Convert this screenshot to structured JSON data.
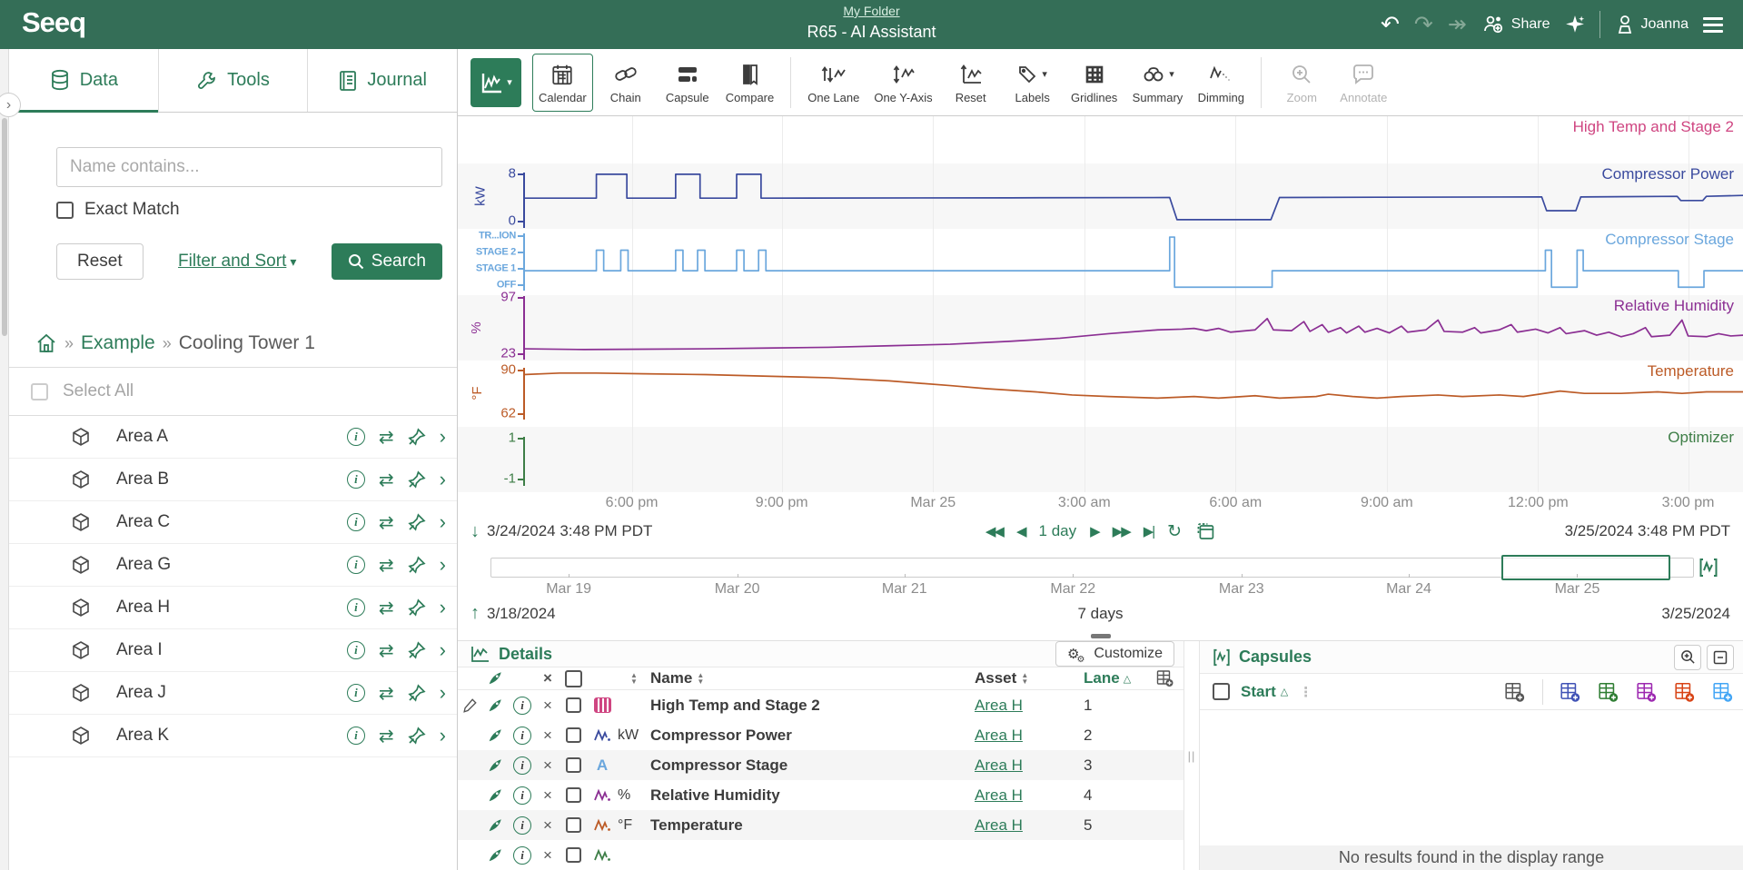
{
  "header": {
    "logo": "Seeq",
    "folder_link": "My Folder",
    "title": "R65 - AI Assistant",
    "share_label": "Share",
    "user_name": "Joanna"
  },
  "sidebar": {
    "tabs": [
      {
        "label": "Data"
      },
      {
        "label": "Tools"
      },
      {
        "label": "Journal"
      }
    ],
    "search": {
      "placeholder": "Name contains...",
      "exact_match_label": "Exact Match",
      "reset_label": "Reset",
      "filter_sort_label": "Filter and Sort",
      "search_label": "Search"
    },
    "breadcrumb": {
      "link": "Example",
      "current": "Cooling Tower 1"
    },
    "select_all_label": "Select All",
    "areas": [
      "Area A",
      "Area B",
      "Area C",
      "Area G",
      "Area H",
      "Area I",
      "Area J",
      "Area K"
    ]
  },
  "toolbar": {
    "items": [
      {
        "label": "Calendar"
      },
      {
        "label": "Chain"
      },
      {
        "label": "Capsule"
      },
      {
        "label": "Compare"
      },
      {
        "label": "One Lane"
      },
      {
        "label": "One Y-Axis"
      },
      {
        "label": "Reset"
      },
      {
        "label": "Labels"
      },
      {
        "label": "Gridlines"
      },
      {
        "label": "Summary"
      },
      {
        "label": "Dimming"
      },
      {
        "label": "Zoom"
      },
      {
        "label": "Annotate"
      }
    ]
  },
  "chart": {
    "lanes": [
      {
        "id": "high-temp-and-stage-2",
        "label": "High Temp and Stage 2",
        "color": "#cf4581",
        "bg": "#ffffff",
        "min": 0,
        "max": 1
      },
      {
        "id": "compressor-power",
        "label": "Compressor Power",
        "color": "#3a4a9e",
        "bg": "#f7f7f7",
        "unit": "kW",
        "min": -1.2,
        "max": 9.8,
        "ticks": [
          {
            "label": "8",
            "value": 8
          },
          {
            "label": "0",
            "value": 0
          }
        ],
        "points": [
          [
            0,
            4
          ],
          [
            6,
            4
          ],
          [
            6,
            8
          ],
          [
            8.5,
            8
          ],
          [
            8.5,
            4
          ],
          [
            12.5,
            4
          ],
          [
            12.5,
            8
          ],
          [
            14.5,
            8
          ],
          [
            14.5,
            4
          ],
          [
            17.5,
            4
          ],
          [
            17.5,
            8
          ],
          [
            19.5,
            8
          ],
          [
            19.5,
            4
          ],
          [
            40,
            4.05
          ],
          [
            53,
            4.1
          ],
          [
            53.6,
            0.4
          ],
          [
            61.3,
            0.4
          ],
          [
            62,
            4.1
          ],
          [
            70,
            4.15
          ],
          [
            83.5,
            4.2
          ],
          [
            83.9,
            1.9
          ],
          [
            86.3,
            1.9
          ],
          [
            86.7,
            4.2
          ],
          [
            94.6,
            4.3
          ],
          [
            94.9,
            3.6
          ],
          [
            96.7,
            3.6
          ],
          [
            97,
            4.3
          ],
          [
            100,
            4.45
          ]
        ]
      },
      {
        "id": "compressor-stage",
        "label": "Compressor Stage",
        "color": "#6ba7dd",
        "bg": "#ffffff",
        "min": -0.6,
        "max": 3.4,
        "small_ticks": true,
        "ticks": [
          {
            "label": "TR...ION",
            "value": 3
          },
          {
            "label": "STAGE 2",
            "value": 2
          },
          {
            "label": "STAGE 1",
            "value": 1
          },
          {
            "label": "OFF",
            "value": 0
          }
        ],
        "points": [
          [
            0,
            0.85
          ],
          [
            6,
            0.85
          ],
          [
            6,
            2.1
          ],
          [
            6.6,
            2.1
          ],
          [
            6.6,
            0.85
          ],
          [
            8,
            0.85
          ],
          [
            8,
            2.1
          ],
          [
            8.6,
            2.1
          ],
          [
            8.6,
            0.85
          ],
          [
            12.5,
            0.85
          ],
          [
            12.5,
            2.1
          ],
          [
            13.1,
            2.1
          ],
          [
            13.1,
            0.85
          ],
          [
            14.3,
            0.85
          ],
          [
            14.3,
            2.1
          ],
          [
            14.9,
            2.1
          ],
          [
            14.9,
            0.85
          ],
          [
            17.5,
            0.85
          ],
          [
            17.5,
            2.1
          ],
          [
            18.1,
            2.1
          ],
          [
            18.1,
            0.85
          ],
          [
            19.3,
            0.85
          ],
          [
            19.3,
            2.1
          ],
          [
            19.9,
            2.1
          ],
          [
            19.9,
            0.85
          ],
          [
            53,
            0.85
          ],
          [
            53,
            2.9
          ],
          [
            53.4,
            2.9
          ],
          [
            53.4,
            -0.15
          ],
          [
            61.4,
            -0.15
          ],
          [
            61.4,
            0.85
          ],
          [
            83.8,
            0.85
          ],
          [
            83.8,
            2.1
          ],
          [
            84.3,
            2.1
          ],
          [
            84.3,
            -0.15
          ],
          [
            86.4,
            -0.15
          ],
          [
            86.4,
            2.1
          ],
          [
            86.9,
            2.1
          ],
          [
            86.9,
            0.85
          ],
          [
            94.7,
            0.85
          ],
          [
            94.7,
            -0.15
          ],
          [
            96.8,
            -0.15
          ],
          [
            96.8,
            0.85
          ],
          [
            100,
            0.85
          ]
        ]
      },
      {
        "id": "relative-humidity",
        "label": "Relative Humidity",
        "color": "#8b2f93",
        "bg": "#f7f7f7",
        "unit": "%",
        "min": 14,
        "max": 101,
        "ticks": [
          {
            "label": "97",
            "value": 97
          },
          {
            "label": "23",
            "value": 23
          }
        ],
        "points": [
          [
            0,
            30
          ],
          [
            5,
            29
          ],
          [
            10,
            29.5
          ],
          [
            15,
            30
          ],
          [
            20,
            31
          ],
          [
            25,
            32
          ],
          [
            30,
            34
          ],
          [
            35,
            36
          ],
          [
            40,
            40
          ],
          [
            44,
            44
          ],
          [
            48,
            50
          ],
          [
            52,
            55
          ],
          [
            54,
            56
          ],
          [
            55,
            57
          ],
          [
            56,
            54
          ],
          [
            57,
            57
          ],
          [
            58,
            52
          ],
          [
            60,
            55
          ],
          [
            61,
            70
          ],
          [
            61.5,
            55
          ],
          [
            63,
            54
          ],
          [
            64,
            66
          ],
          [
            64.5,
            53
          ],
          [
            65.5,
            62
          ],
          [
            66,
            52
          ],
          [
            67,
            58
          ],
          [
            67.5,
            51
          ],
          [
            68.5,
            60
          ],
          [
            69,
            52
          ],
          [
            70,
            57
          ],
          [
            71,
            51
          ],
          [
            72,
            60
          ],
          [
            72.5,
            52
          ],
          [
            74,
            55
          ],
          [
            75,
            68
          ],
          [
            75.5,
            53
          ],
          [
            77,
            52
          ],
          [
            78,
            58
          ],
          [
            78.5,
            51
          ],
          [
            80,
            55
          ],
          [
            81,
            62
          ],
          [
            81.5,
            52
          ],
          [
            83,
            56
          ],
          [
            84,
            51
          ],
          [
            85,
            58
          ],
          [
            85.5,
            50
          ],
          [
            87,
            54
          ],
          [
            88,
            48
          ],
          [
            89,
            52
          ],
          [
            90,
            46
          ],
          [
            91,
            50
          ],
          [
            92,
            58
          ],
          [
            92.5,
            46
          ],
          [
            94,
            48
          ],
          [
            95,
            68
          ],
          [
            95.5,
            47
          ],
          [
            97,
            46
          ],
          [
            98,
            50
          ],
          [
            99,
            47
          ],
          [
            100,
            48
          ]
        ]
      },
      {
        "id": "temperature",
        "label": "Temperature",
        "color": "#bc5b27",
        "bg": "#ffffff",
        "unit": "°F",
        "min": 54,
        "max": 96,
        "ticks": [
          {
            "label": "90",
            "value": 90
          },
          {
            "label": "62",
            "value": 62
          }
        ],
        "points": [
          [
            0,
            87
          ],
          [
            3,
            88
          ],
          [
            6,
            88
          ],
          [
            10,
            87.5
          ],
          [
            15,
            87
          ],
          [
            20,
            86
          ],
          [
            25,
            85
          ],
          [
            30,
            83
          ],
          [
            35,
            80
          ],
          [
            38,
            78
          ],
          [
            42,
            76
          ],
          [
            45,
            74
          ],
          [
            48,
            73
          ],
          [
            52,
            72
          ],
          [
            55,
            73
          ],
          [
            57,
            72
          ],
          [
            60,
            73.5
          ],
          [
            62,
            72
          ],
          [
            65,
            73
          ],
          [
            66,
            74.5
          ],
          [
            68,
            73
          ],
          [
            70,
            72
          ],
          [
            72,
            73
          ],
          [
            75,
            74
          ],
          [
            77,
            73
          ],
          [
            80,
            74
          ],
          [
            82,
            73
          ],
          [
            85,
            76.5
          ],
          [
            87,
            75
          ],
          [
            90,
            75
          ],
          [
            93,
            76
          ],
          [
            95,
            75
          ],
          [
            97,
            76
          ],
          [
            100,
            76
          ]
        ]
      },
      {
        "id": "optimizer",
        "label": "Optimizer",
        "color": "#3e7e47",
        "bg": "#f7f7f7",
        "min": -1.6,
        "max": 1.6,
        "ticks": [
          {
            "label": "1",
            "value": 1
          },
          {
            "label": "-1",
            "value": -1
          }
        ]
      }
    ],
    "xticks": [
      {
        "pos": 8.9,
        "label": "6:00 pm"
      },
      {
        "pos": 21.2,
        "label": "9:00 pm"
      },
      {
        "pos": 33.6,
        "label": "Mar 25"
      },
      {
        "pos": 46.0,
        "label": "3:00 am"
      },
      {
        "pos": 58.4,
        "label": "6:00 am"
      },
      {
        "pos": 70.8,
        "label": "9:00 am"
      },
      {
        "pos": 83.2,
        "label": "12:00 pm"
      },
      {
        "pos": 95.5,
        "label": "3:00 pm"
      }
    ]
  },
  "timebar": {
    "start": "3/24/2024 3:48 PM PDT",
    "duration": "1 day",
    "end": "3/25/2024 3:48 PM PDT"
  },
  "overview": {
    "start": "3/18/2024",
    "duration": "7 days",
    "end": "3/25/2024",
    "ticks": [
      {
        "pos": 6.5,
        "label": "Mar 19"
      },
      {
        "pos": 20.5,
        "label": "Mar 20"
      },
      {
        "pos": 34.4,
        "label": "Mar 21"
      },
      {
        "pos": 48.4,
        "label": "Mar 22"
      },
      {
        "pos": 62.4,
        "label": "Mar 23"
      },
      {
        "pos": 76.3,
        "label": "Mar 24"
      },
      {
        "pos": 90.3,
        "label": "Mar 25"
      }
    ],
    "selection": {
      "left_pct": 84,
      "width_pct": 14
    }
  },
  "details": {
    "title": "Details",
    "customize_label": "Customize",
    "columns": {
      "name": "Name",
      "asset": "Asset",
      "lane": "Lane"
    },
    "rows": [
      {
        "pencil": true,
        "icon": "condition",
        "color": "#cf4581",
        "unit": "",
        "name": "High Temp and Stage 2",
        "asset": "Area H",
        "lane": "1",
        "striped": false
      },
      {
        "icon": "signal",
        "color": "#3a4a9e",
        "unit": "kW",
        "name": "Compressor Power",
        "asset": "Area H",
        "lane": "2",
        "striped": false
      },
      {
        "icon": "string",
        "color": "#6ba7dd",
        "unit": "",
        "name": "Compressor Stage",
        "asset": "Area H",
        "lane": "3",
        "striped": true
      },
      {
        "icon": "signal",
        "color": "#8b2f93",
        "unit": "%",
        "name": "Relative Humidity",
        "asset": "Area H",
        "lane": "4",
        "striped": false
      },
      {
        "icon": "signal",
        "color": "#bc5b27",
        "unit": "°F",
        "name": "Temperature",
        "asset": "Area H",
        "lane": "5",
        "striped": true
      },
      {
        "icon": "signal",
        "color": "#3e7e47",
        "unit": "",
        "name": "",
        "asset": "",
        "lane": "",
        "striped": false,
        "partial": true
      }
    ]
  },
  "capsules": {
    "title": "Capsules",
    "start_column": "Start",
    "empty_message": "No results found in the display range",
    "add_colors": [
      "#555555",
      "#3f51b5",
      "#2e7d32",
      "#9c27b0",
      "#d84315",
      "#42a5f5"
    ]
  }
}
